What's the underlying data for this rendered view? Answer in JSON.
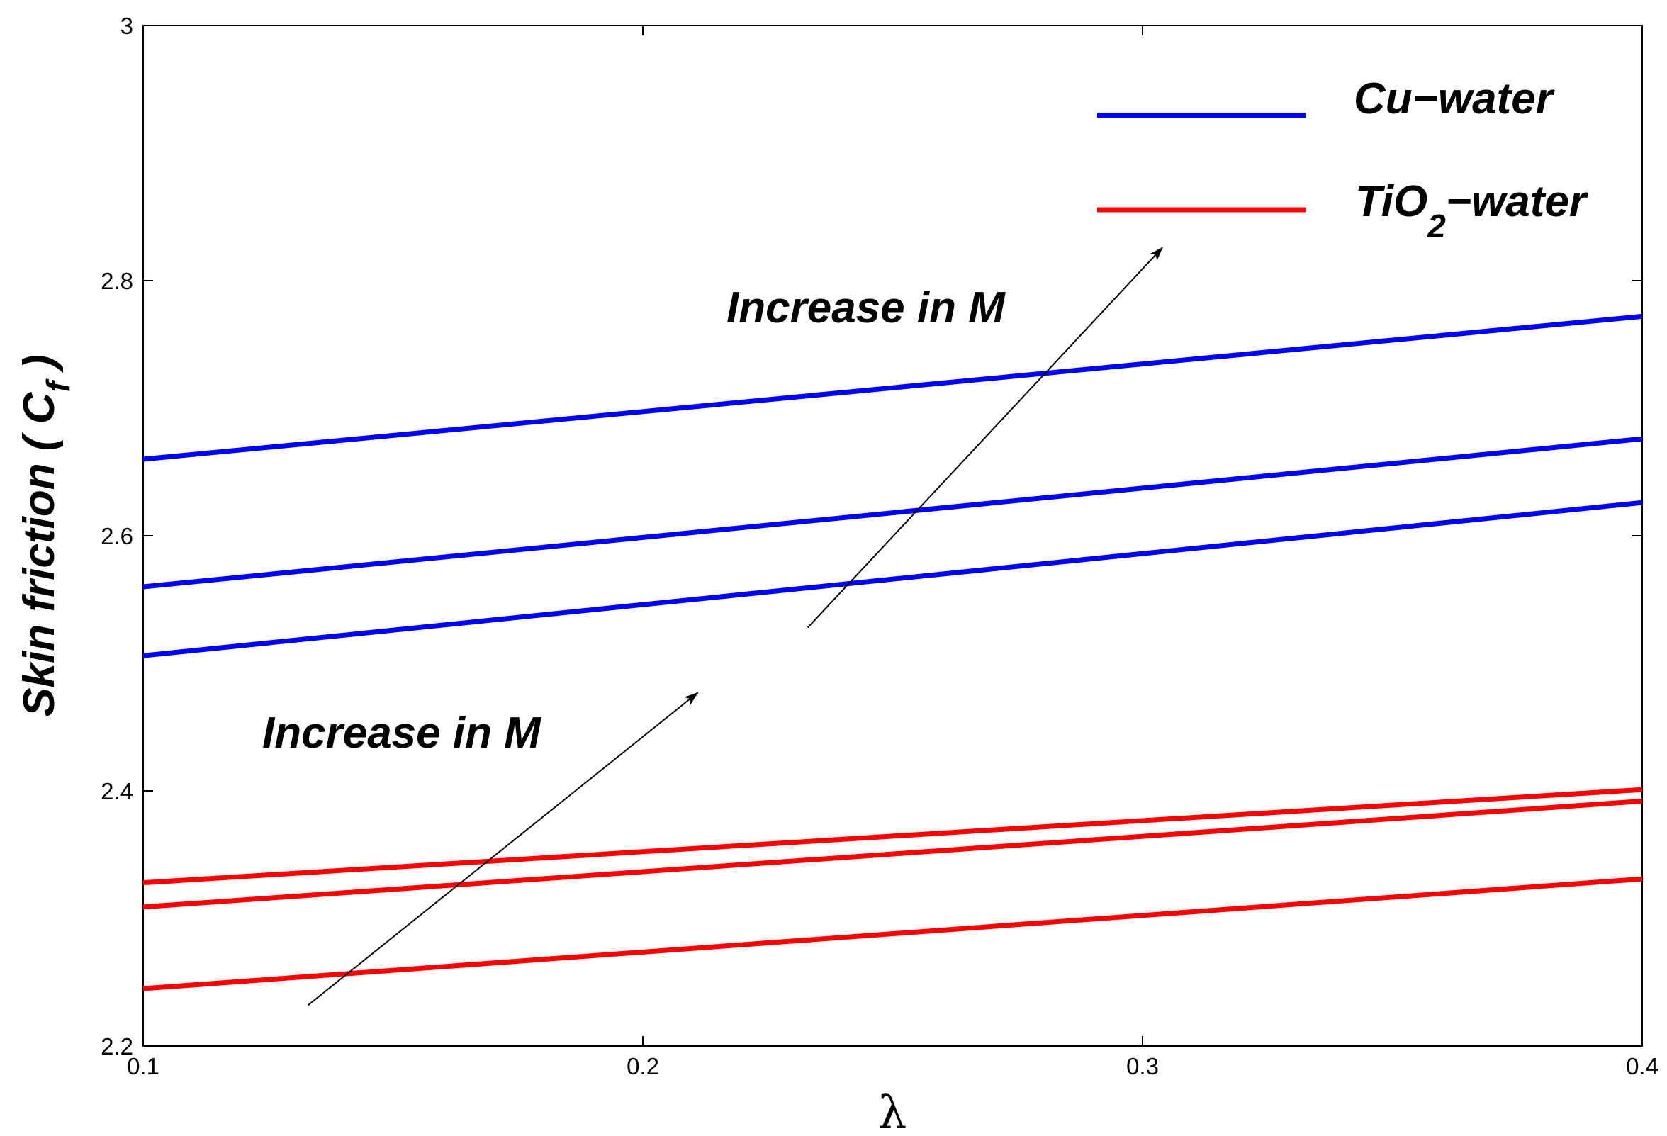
{
  "chart_data": {
    "type": "line",
    "title": "",
    "xlabel": "λ",
    "ylabel": {
      "main": "Skin friction ( C",
      "subscript": "f",
      "close": " )"
    },
    "xlim": [
      0.1,
      0.4
    ],
    "ylim": [
      2.2,
      3.0
    ],
    "xticks": [
      0.1,
      0.2,
      0.3,
      0.4
    ],
    "xtick_labels": [
      "0.1",
      "0.2",
      "0.3",
      "0.4"
    ],
    "yticks": [
      2.2,
      2.4,
      2.6,
      2.8,
      3.0
    ],
    "ytick_labels": [
      "2.2",
      "2.4",
      "2.6",
      "2.8",
      "3"
    ],
    "grid": false,
    "legend_position": "top-right",
    "legend": [
      {
        "label": "Cu−water",
        "color": "#0000ff"
      },
      {
        "label_main": "TiO",
        "label_sub": "2",
        "label_rest": "−water",
        "color": "#ff0000"
      }
    ],
    "series": [
      {
        "name": "Cu-water (M1)",
        "group": "Cu-water",
        "color": "#0000ff",
        "x": [
          0.1,
          0.4
        ],
        "y": [
          2.506,
          2.626
        ]
      },
      {
        "name": "Cu-water (M2)",
        "group": "Cu-water",
        "color": "#0000ff",
        "x": [
          0.1,
          0.4
        ],
        "y": [
          2.56,
          2.676
        ]
      },
      {
        "name": "Cu-water (M3)",
        "group": "Cu-water",
        "color": "#0000ff",
        "x": [
          0.1,
          0.4
        ],
        "y": [
          2.66,
          2.772
        ]
      },
      {
        "name": "TiO2-water (M1)",
        "group": "TiO2-water",
        "color": "#ff0000",
        "x": [
          0.1,
          0.4
        ],
        "y": [
          2.245,
          2.331
        ]
      },
      {
        "name": "TiO2-water (M2)",
        "group": "TiO2-water",
        "color": "#ff0000",
        "x": [
          0.1,
          0.4
        ],
        "y": [
          2.309,
          2.392
        ]
      },
      {
        "name": "TiO2-water (M3)",
        "group": "TiO2-water",
        "color": "#ff0000",
        "x": [
          0.1,
          0.4
        ],
        "y": [
          2.328,
          2.401
        ]
      }
    ],
    "annotations": [
      {
        "text": "Increase in M",
        "arrow_from": [
          0.233,
          2.528
        ],
        "arrow_to": [
          0.304,
          2.826
        ]
      },
      {
        "text": "Increase in M",
        "arrow_from": [
          0.133,
          2.232
        ],
        "arrow_to": [
          0.211,
          2.477
        ]
      }
    ]
  }
}
